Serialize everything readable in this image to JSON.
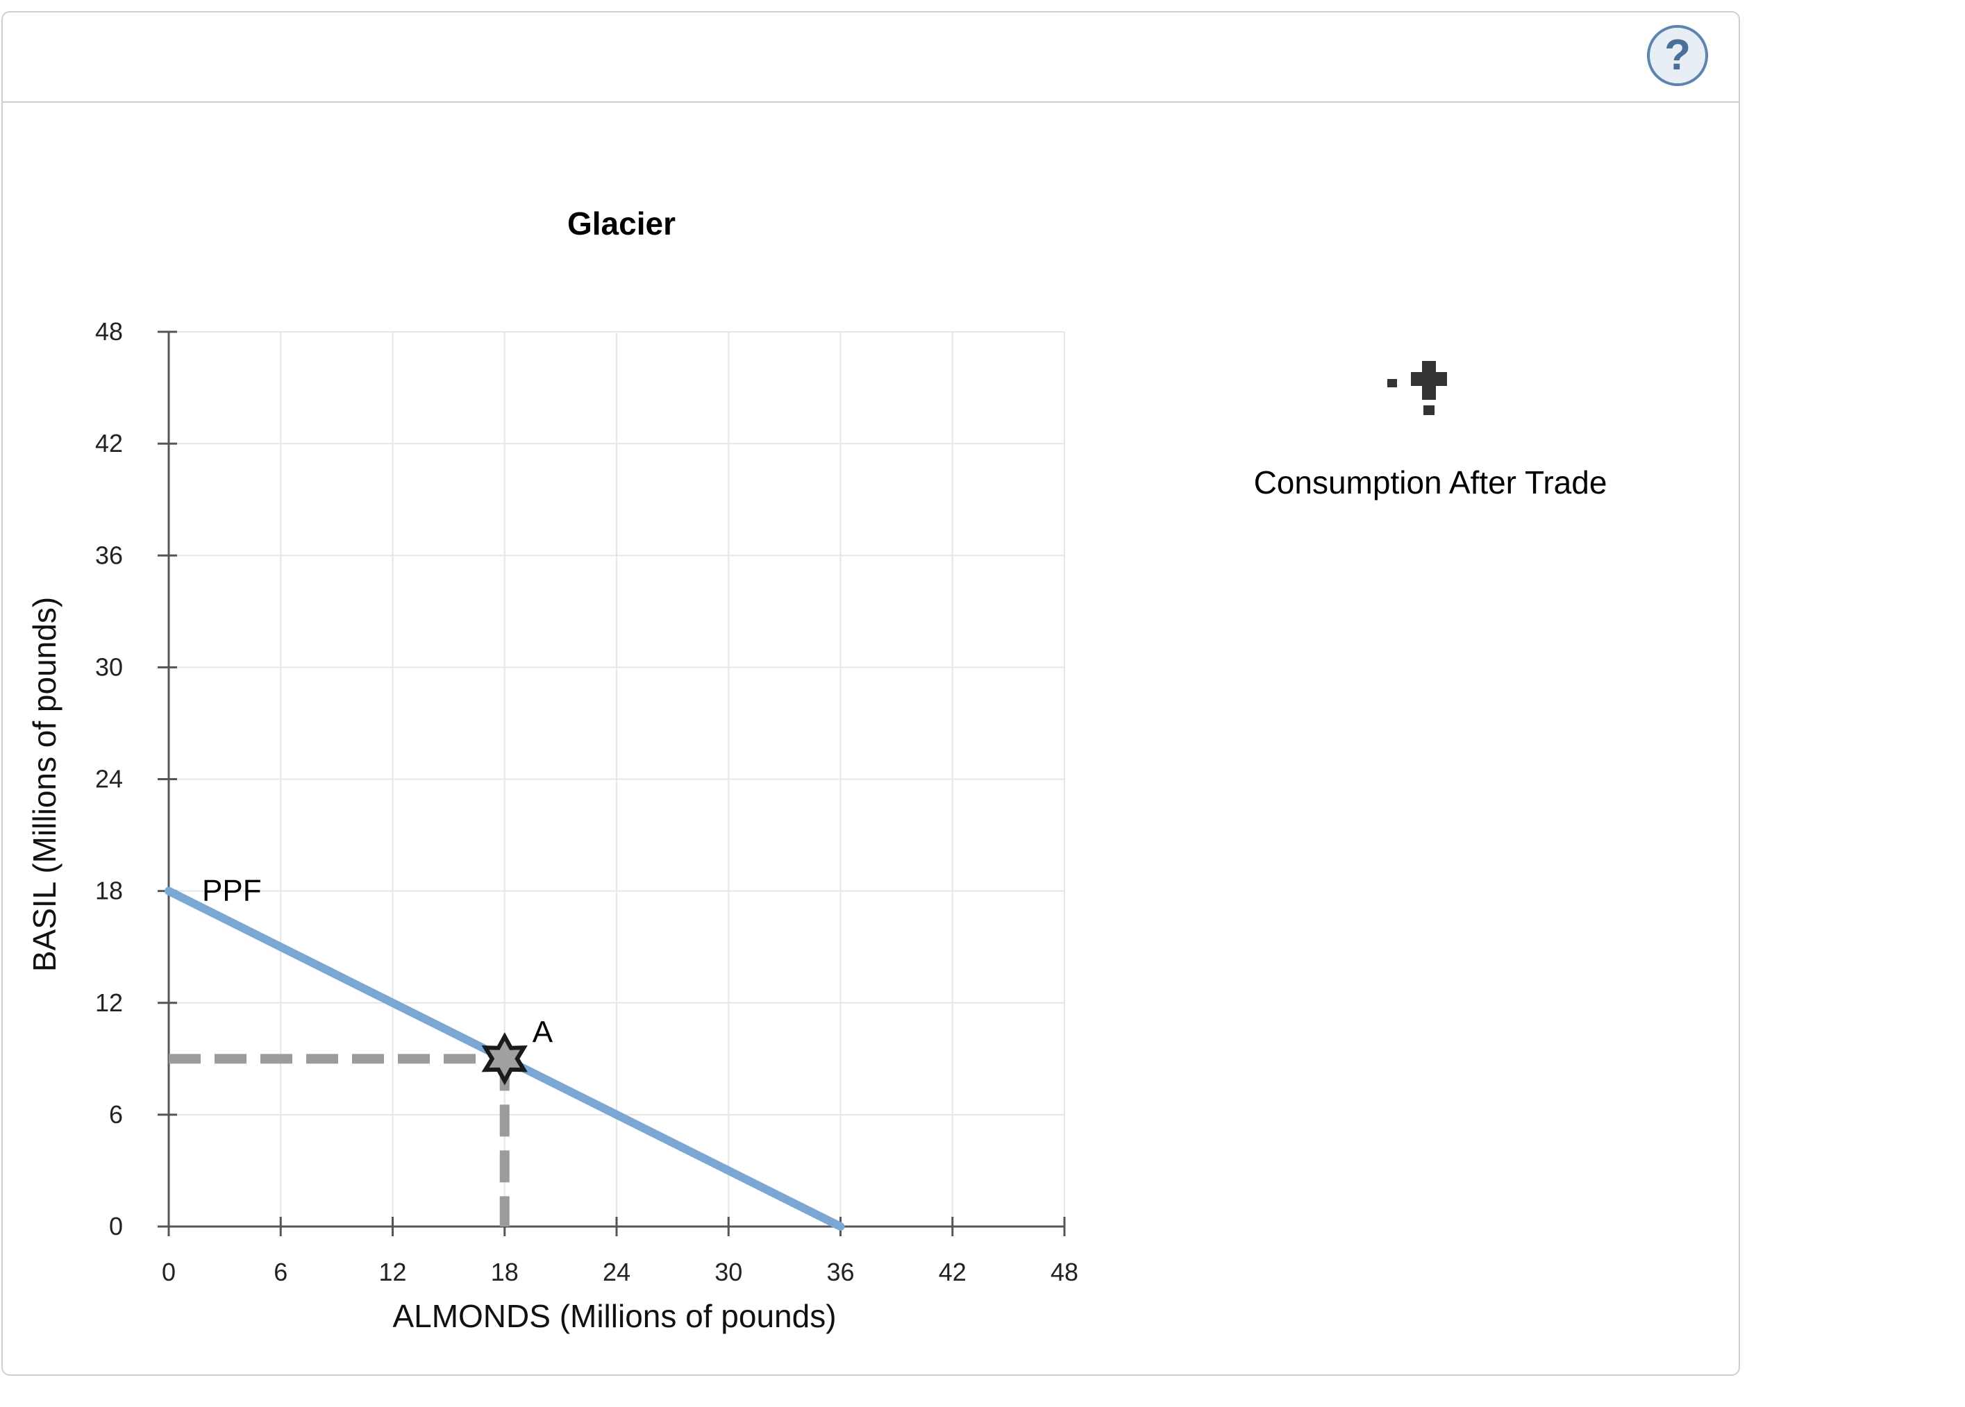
{
  "header": {
    "help_label": "?"
  },
  "tool": {
    "label": "Consumption After Trade",
    "icon": "dashed-plus-icon"
  },
  "colors": {
    "ppf": "#7ba7d4",
    "guide": "#9b9b9b",
    "marker_fill": "#a0a0a0",
    "marker_stroke": "#1a1a1a",
    "grid": "#e6e6e6",
    "axis": "#555555"
  },
  "chart_data": {
    "type": "line",
    "title": "Glacier",
    "xlabel": "ALMONDS (Millions of pounds)",
    "ylabel": "BASIL (Millions of pounds)",
    "xlim": [
      0,
      48
    ],
    "ylim": [
      0,
      48
    ],
    "xticks": [
      0,
      6,
      12,
      18,
      24,
      30,
      36,
      42,
      48
    ],
    "yticks": [
      0,
      6,
      12,
      18,
      24,
      30,
      36,
      42,
      48
    ],
    "grid": true,
    "series": [
      {
        "name": "PPF",
        "x": [
          0,
          36
        ],
        "y": [
          18,
          0
        ]
      }
    ],
    "points": [
      {
        "label": "A",
        "x": 18,
        "y": 9
      }
    ]
  }
}
